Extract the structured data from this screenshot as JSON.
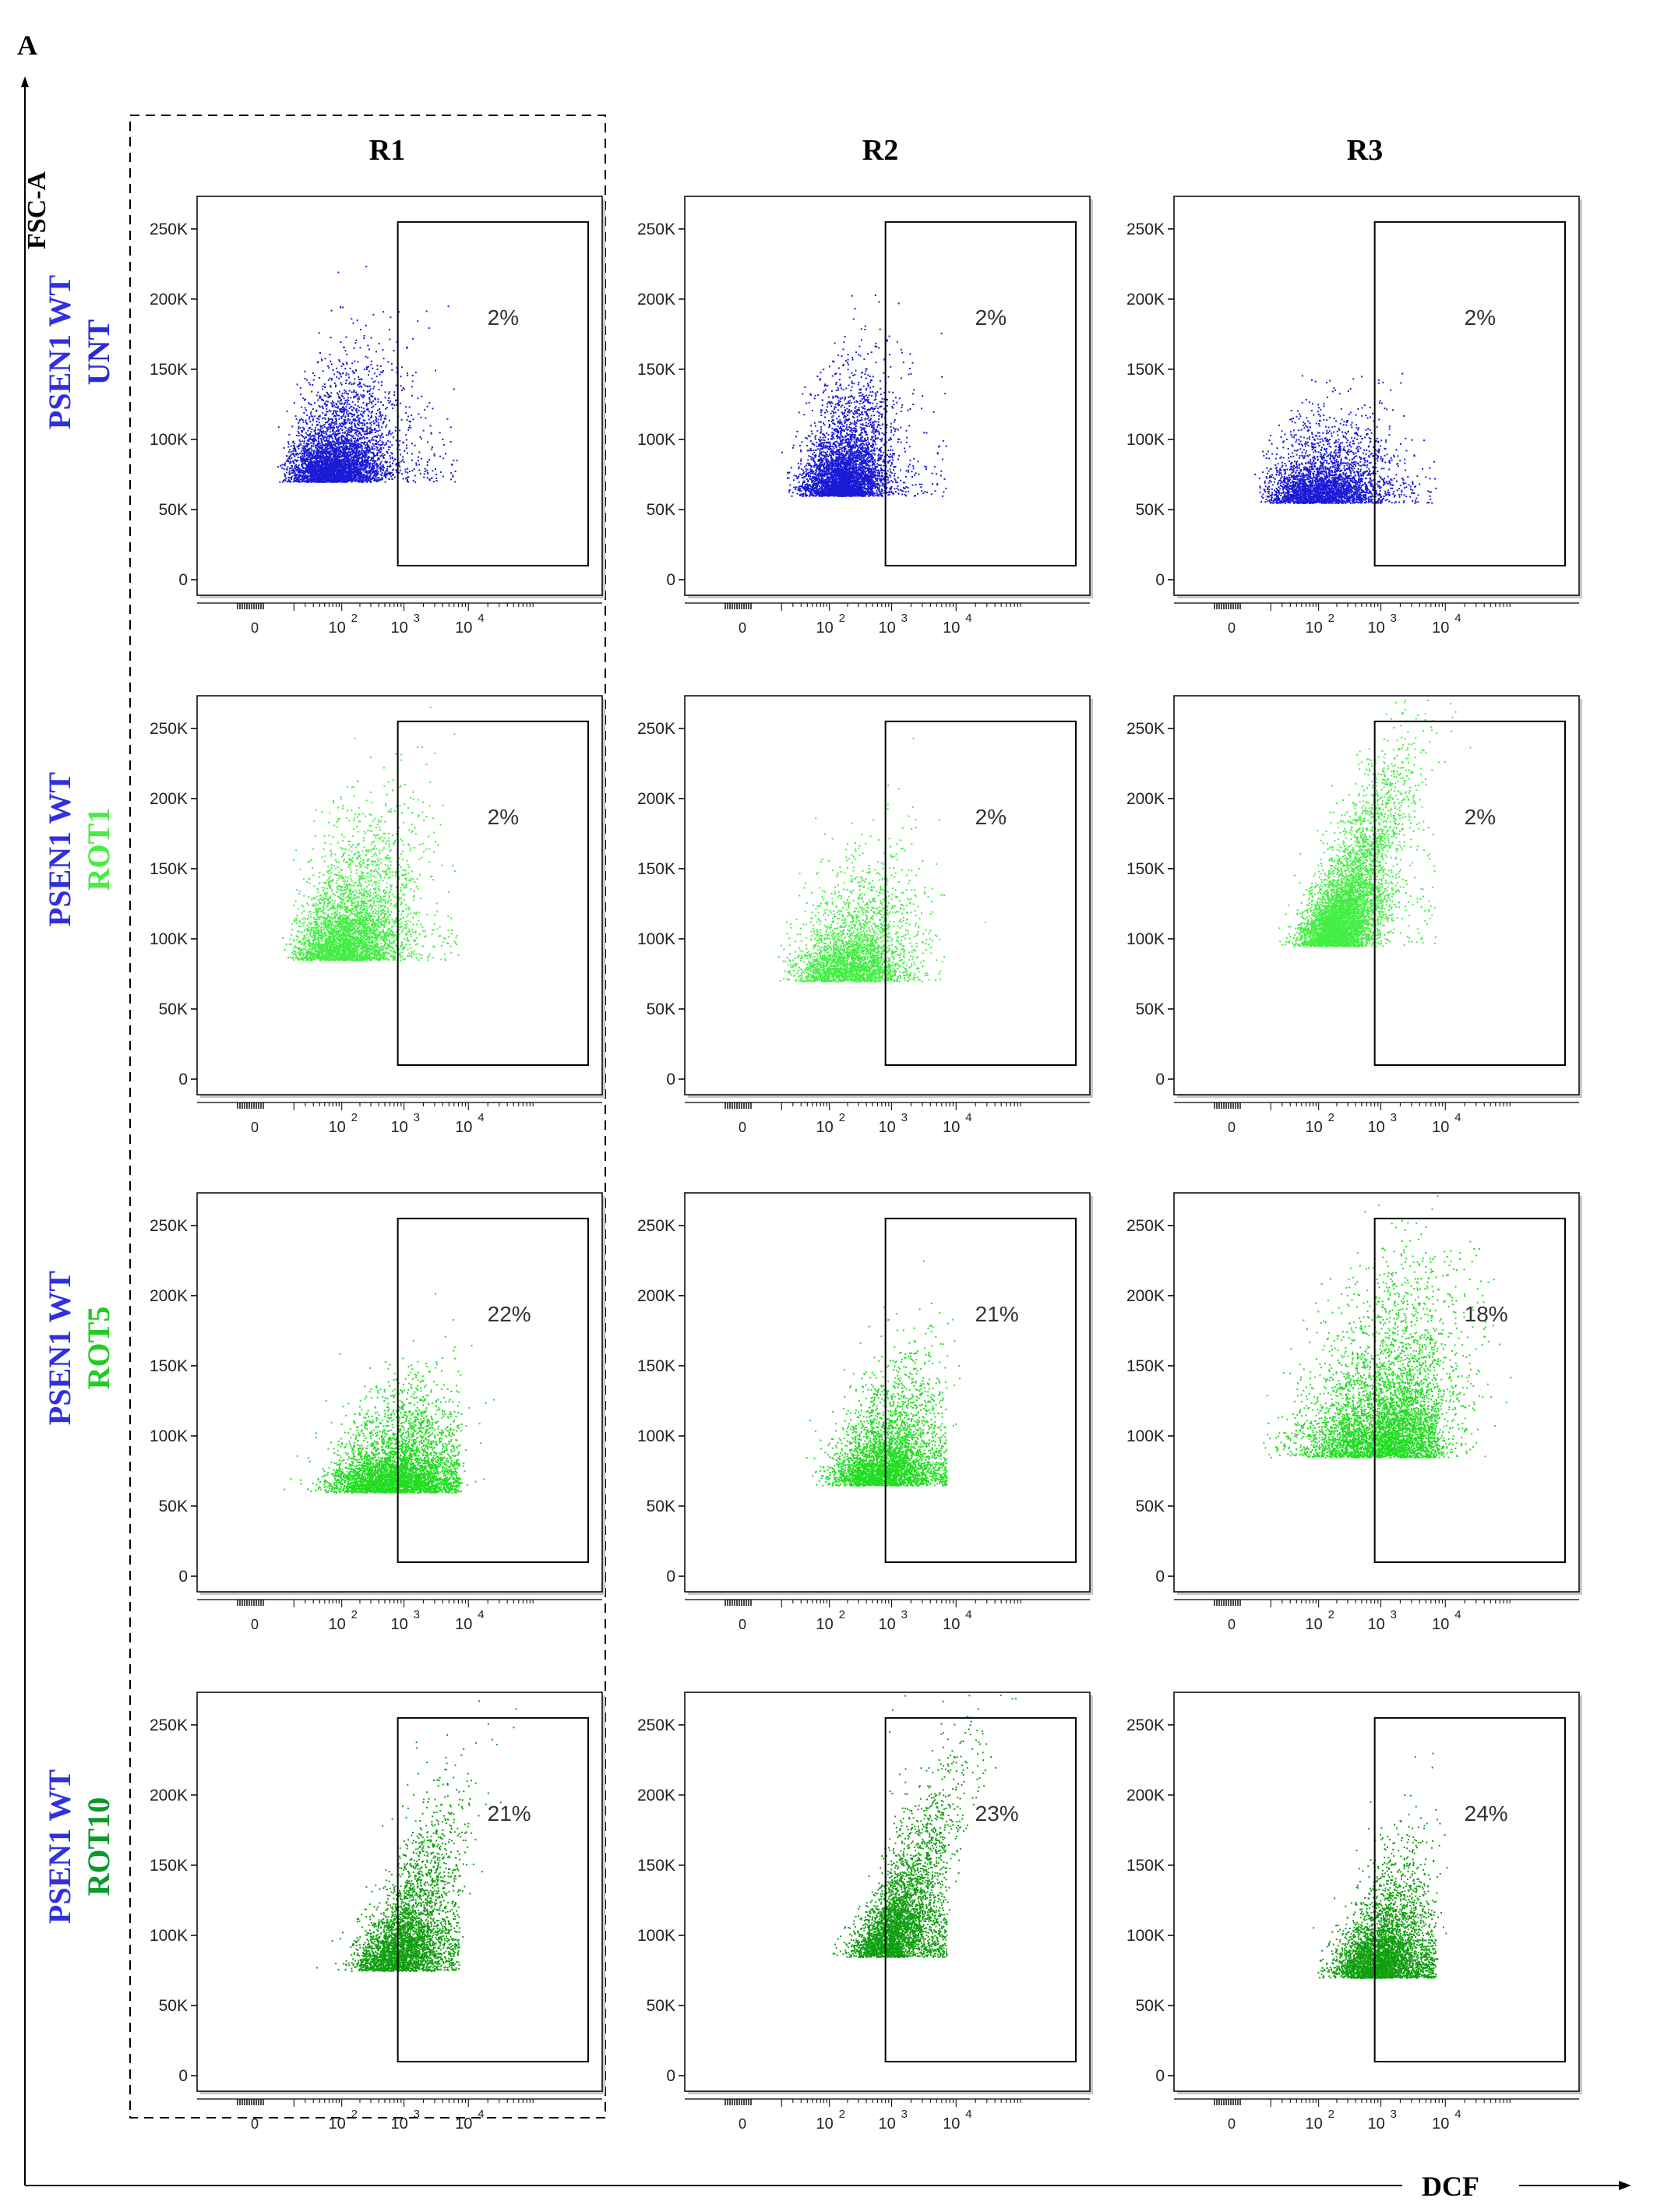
{
  "panel_label": "A",
  "y_axis_title": "FSC-A",
  "x_axis_title": "DCF",
  "columns": [
    "R1",
    "R2",
    "R3"
  ],
  "rows": [
    {
      "line1": "PSEN1 WT",
      "line2": "UNT",
      "dot_color": "#1a1ad6",
      "line2_color": "#2b2bd6"
    },
    {
      "line1": "PSEN1 WT",
      "line2": "ROT1",
      "dot_color": "#44ee44",
      "line2_color": "#44ee44"
    },
    {
      "line1": "PSEN1 WT",
      "line2": "ROT5",
      "dot_color": "#22dd22",
      "line2_color": "#22cc22"
    },
    {
      "line1": "PSEN1 WT",
      "line2": "ROT10",
      "dot_color": "#0f9e0f",
      "line2_color": "#0a9a2a"
    }
  ],
  "row_label_color": "#3030e0",
  "chart_data": {
    "type": "scatter",
    "x_scale": "log",
    "y_ticks": [
      "0",
      "50K",
      "100K",
      "150K",
      "200K",
      "250K"
    ],
    "y_tick_values": [
      0,
      50000,
      100000,
      150000,
      200000,
      250000
    ],
    "ylim": [
      0,
      262144
    ],
    "x_ticks": [
      "0",
      "10^2",
      "10^3",
      "10^4"
    ],
    "x_tick_values": [
      0,
      100,
      1000,
      10000
    ],
    "gate_x_range": [
      800,
      100000
    ],
    "gate_y_range": [
      10000,
      255000
    ],
    "panels": [
      [
        "2%",
        "2%",
        "2%"
      ],
      [
        "2%",
        "2%",
        "2%"
      ],
      [
        "22%",
        "21%",
        "18%"
      ],
      [
        "21%",
        "23%",
        "24%"
      ]
    ]
  }
}
